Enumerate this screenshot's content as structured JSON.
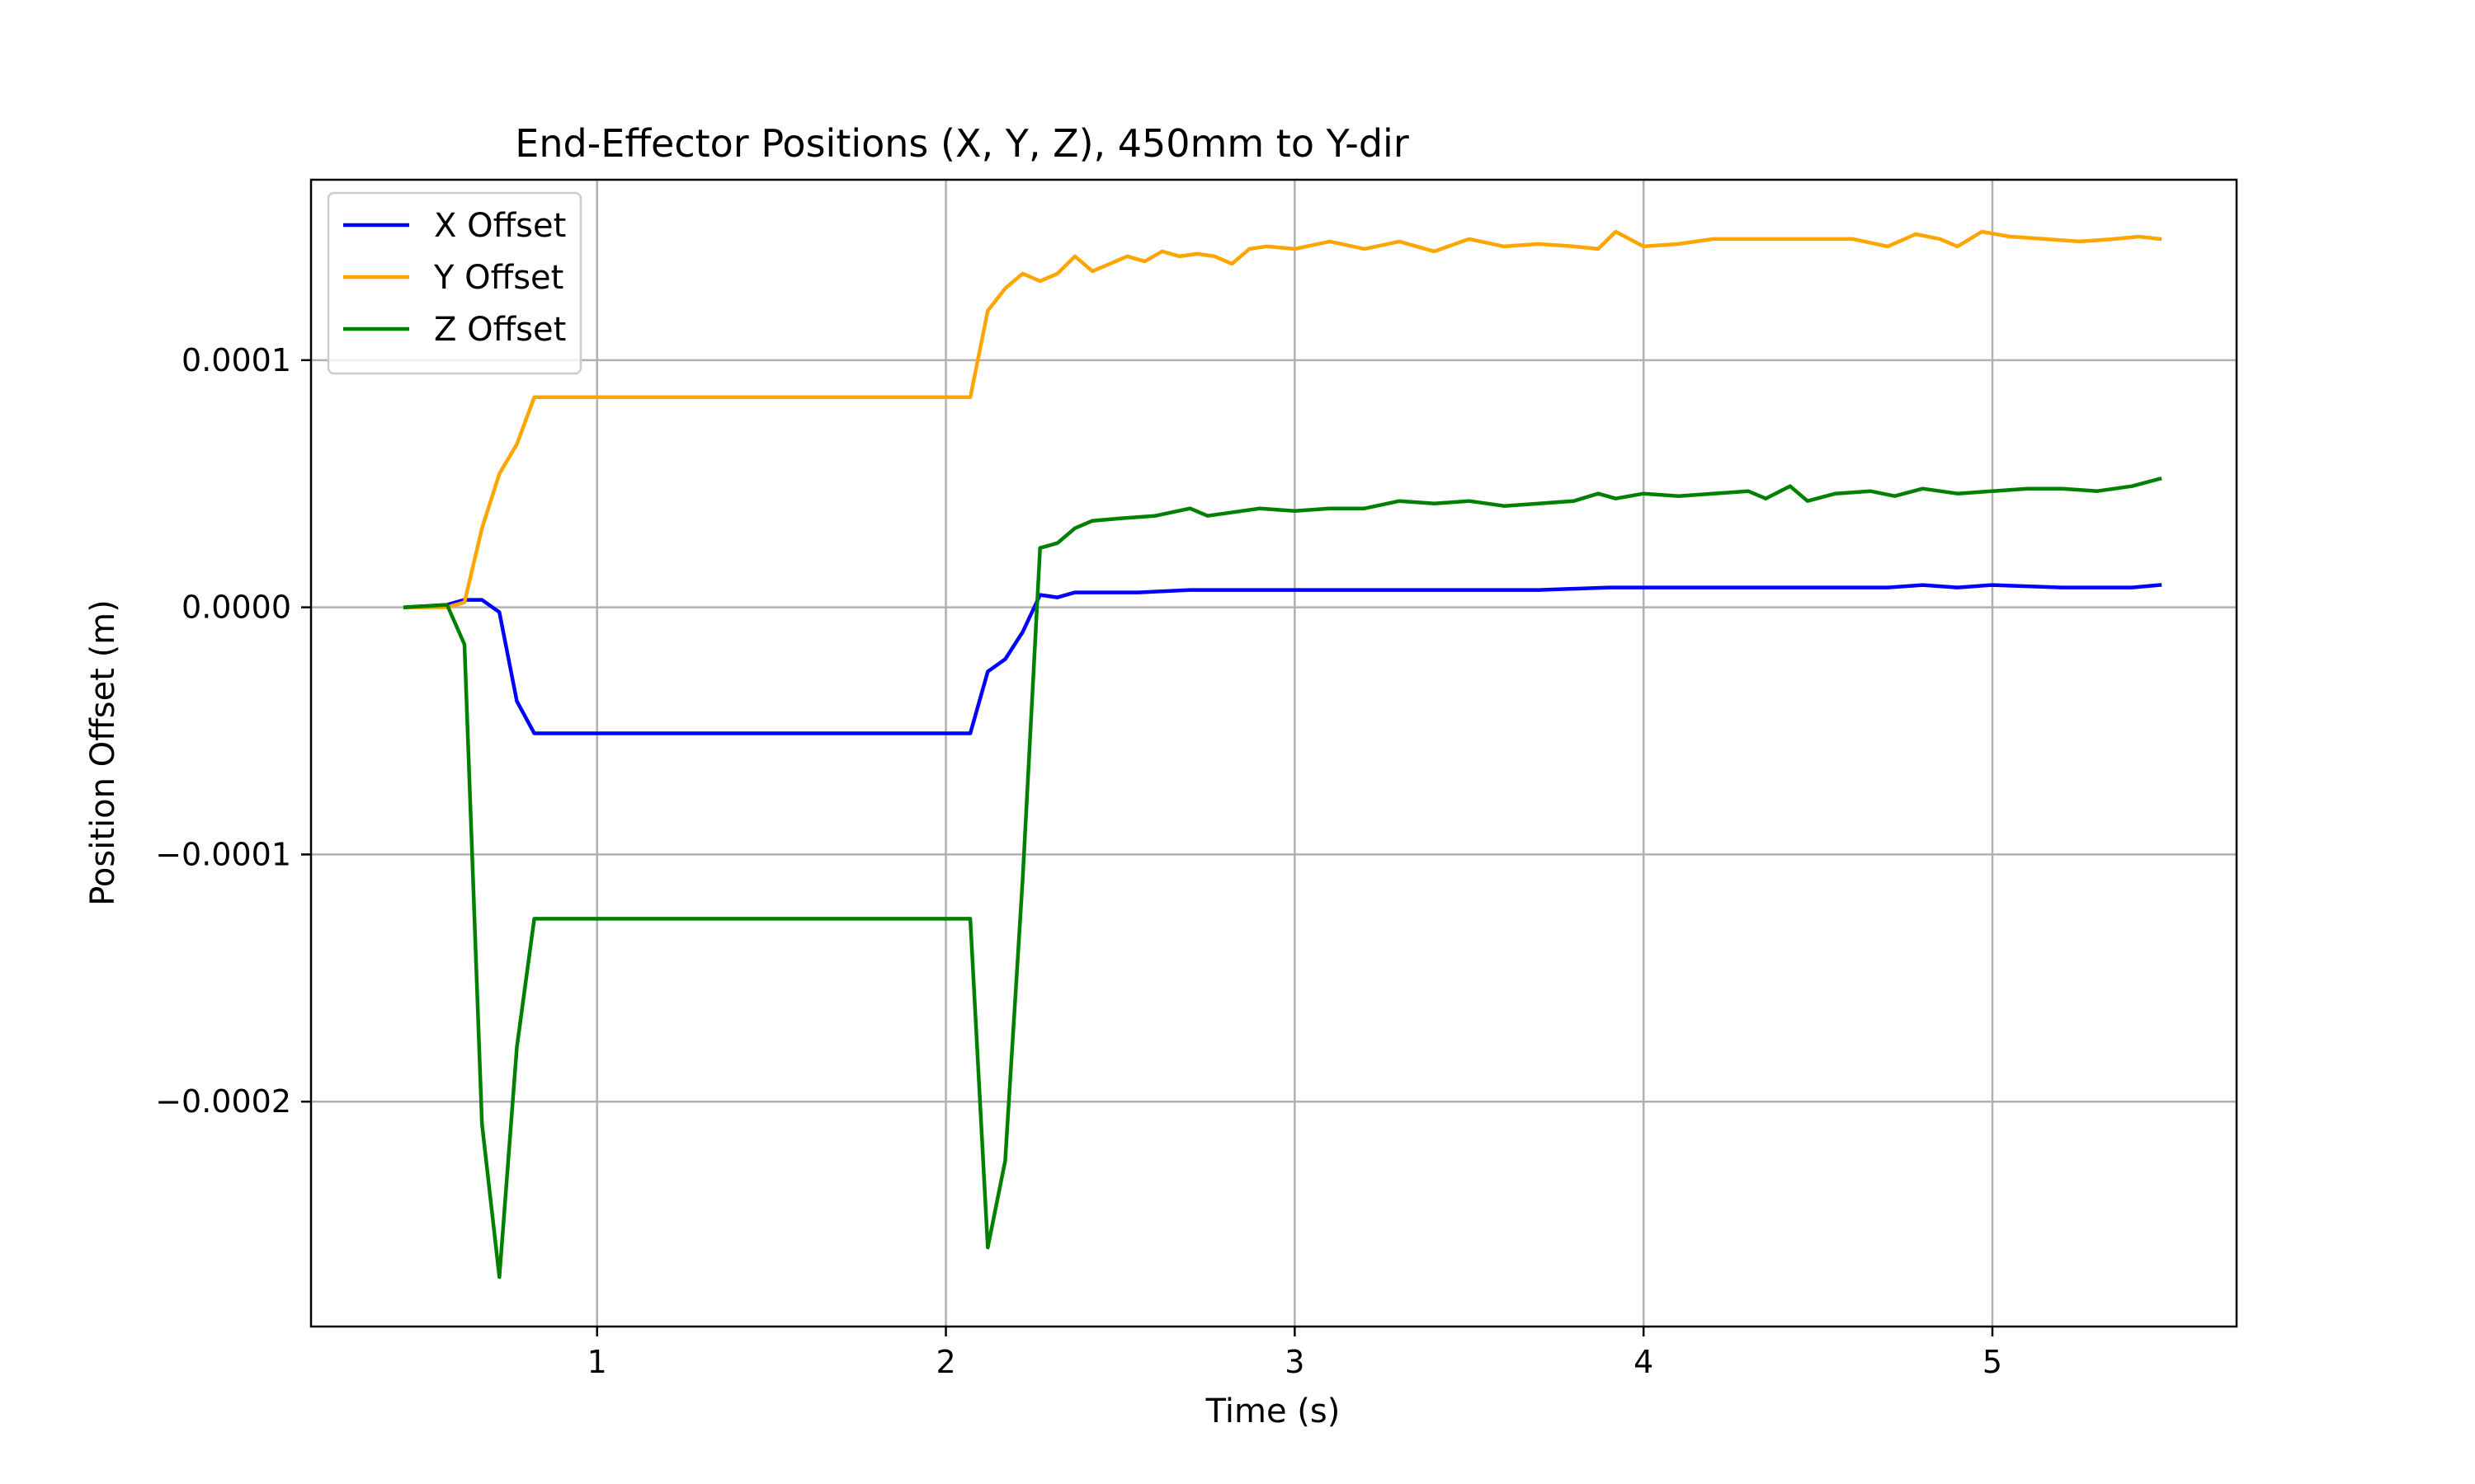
{
  "chart_data": {
    "type": "line",
    "title": "End-Effector Positions (X, Y, Z), 450mm to Y-dir",
    "xlabel": "Time (s)",
    "ylabel": "Position Offset (m)",
    "xlim": [
      0.18,
      5.7
    ],
    "ylim": [
      -0.000291,
      0.000173
    ],
    "xticks": [
      1,
      2,
      3,
      4,
      5
    ],
    "xtick_labels": [
      "1",
      "2",
      "3",
      "4",
      "5"
    ],
    "yticks": [
      0.0001,
      0.0,
      -0.0001,
      -0.0002
    ],
    "ytick_labels": [
      "0.0001",
      "0.0000",
      "−0.0001",
      "−0.0002"
    ],
    "grid": true,
    "legend_position": "upper-left",
    "series": [
      {
        "name": "X Offset",
        "color": "#0000ff",
        "points": [
          [
            0.45,
            0.0
          ],
          [
            0.57,
            1e-06
          ],
          [
            0.62,
            3e-06
          ],
          [
            0.67,
            3e-06
          ],
          [
            0.72,
            -2e-06
          ],
          [
            0.77,
            -3.8e-05
          ],
          [
            0.82,
            -5.1e-05
          ],
          [
            1.0,
            -5.1e-05
          ],
          [
            1.5,
            -5.1e-05
          ],
          [
            2.07,
            -5.1e-05
          ],
          [
            2.12,
            -2.6e-05
          ],
          [
            2.17,
            -2.1e-05
          ],
          [
            2.22,
            -1e-05
          ],
          [
            2.27,
            5e-06
          ],
          [
            2.32,
            4e-06
          ],
          [
            2.37,
            6e-06
          ],
          [
            2.45,
            6e-06
          ],
          [
            2.55,
            6e-06
          ],
          [
            2.7,
            7e-06
          ],
          [
            2.9,
            7e-06
          ],
          [
            3.1,
            7e-06
          ],
          [
            3.3,
            7e-06
          ],
          [
            3.5,
            7e-06
          ],
          [
            3.7,
            7e-06
          ],
          [
            3.9,
            8e-06
          ],
          [
            4.1,
            8e-06
          ],
          [
            4.3,
            8e-06
          ],
          [
            4.5,
            8e-06
          ],
          [
            4.7,
            8e-06
          ],
          [
            4.8,
            9e-06
          ],
          [
            4.9,
            8e-06
          ],
          [
            5.0,
            9e-06
          ],
          [
            5.2,
            8e-06
          ],
          [
            5.4,
            8e-06
          ],
          [
            5.48,
            9e-06
          ]
        ]
      },
      {
        "name": "Y Offset",
        "color": "#ffa500",
        "points": [
          [
            0.45,
            0.0
          ],
          [
            0.57,
            0.0
          ],
          [
            0.62,
            2e-06
          ],
          [
            0.67,
            3.2e-05
          ],
          [
            0.72,
            5.4e-05
          ],
          [
            0.77,
            6.6e-05
          ],
          [
            0.82,
            8.5e-05
          ],
          [
            1.0,
            8.5e-05
          ],
          [
            1.5,
            8.5e-05
          ],
          [
            2.07,
            8.5e-05
          ],
          [
            2.12,
            0.00012
          ],
          [
            2.17,
            0.000129
          ],
          [
            2.22,
            0.000135
          ],
          [
            2.27,
            0.000132
          ],
          [
            2.32,
            0.000135
          ],
          [
            2.37,
            0.000142
          ],
          [
            2.42,
            0.000136
          ],
          [
            2.47,
            0.000139
          ],
          [
            2.52,
            0.000142
          ],
          [
            2.57,
            0.00014
          ],
          [
            2.62,
            0.000144
          ],
          [
            2.67,
            0.000142
          ],
          [
            2.72,
            0.000143
          ],
          [
            2.77,
            0.000142
          ],
          [
            2.82,
            0.000139
          ],
          [
            2.87,
            0.000145
          ],
          [
            2.92,
            0.000146
          ],
          [
            3.0,
            0.000145
          ],
          [
            3.1,
            0.000148
          ],
          [
            3.2,
            0.000145
          ],
          [
            3.3,
            0.000148
          ],
          [
            3.4,
            0.000144
          ],
          [
            3.5,
            0.000149
          ],
          [
            3.6,
            0.000146
          ],
          [
            3.7,
            0.000147
          ],
          [
            3.8,
            0.000146
          ],
          [
            3.87,
            0.000145
          ],
          [
            3.92,
            0.000152
          ],
          [
            4.0,
            0.000146
          ],
          [
            4.1,
            0.000147
          ],
          [
            4.2,
            0.000149
          ],
          [
            4.3,
            0.000149
          ],
          [
            4.4,
            0.000149
          ],
          [
            4.5,
            0.000149
          ],
          [
            4.6,
            0.000149
          ],
          [
            4.7,
            0.000146
          ],
          [
            4.78,
            0.000151
          ],
          [
            4.85,
            0.000149
          ],
          [
            4.9,
            0.000146
          ],
          [
            4.97,
            0.000152
          ],
          [
            5.05,
            0.00015
          ],
          [
            5.15,
            0.000149
          ],
          [
            5.25,
            0.000148
          ],
          [
            5.35,
            0.000149
          ],
          [
            5.42,
            0.00015
          ],
          [
            5.48,
            0.000149
          ]
        ]
      },
      {
        "name": "Z Offset",
        "color": "#008000",
        "points": [
          [
            0.45,
            0.0
          ],
          [
            0.57,
            1e-06
          ],
          [
            0.62,
            -1.5e-05
          ],
          [
            0.67,
            -0.000209
          ],
          [
            0.72,
            -0.000271
          ],
          [
            0.77,
            -0.000178
          ],
          [
            0.82,
            -0.000126
          ],
          [
            1.0,
            -0.000126
          ],
          [
            1.5,
            -0.000126
          ],
          [
            2.07,
            -0.000126
          ],
          [
            2.12,
            -0.000259
          ],
          [
            2.17,
            -0.000224
          ],
          [
            2.22,
            -0.00011
          ],
          [
            2.27,
            2.4e-05
          ],
          [
            2.32,
            2.6e-05
          ],
          [
            2.37,
            3.2e-05
          ],
          [
            2.42,
            3.5e-05
          ],
          [
            2.5,
            3.6e-05
          ],
          [
            2.6,
            3.7e-05
          ],
          [
            2.7,
            4e-05
          ],
          [
            2.75,
            3.7e-05
          ],
          [
            2.8,
            3.8e-05
          ],
          [
            2.9,
            4e-05
          ],
          [
            3.0,
            3.9e-05
          ],
          [
            3.1,
            4e-05
          ],
          [
            3.2,
            4e-05
          ],
          [
            3.3,
            4.3e-05
          ],
          [
            3.4,
            4.2e-05
          ],
          [
            3.5,
            4.3e-05
          ],
          [
            3.6,
            4.1e-05
          ],
          [
            3.7,
            4.2e-05
          ],
          [
            3.8,
            4.3e-05
          ],
          [
            3.87,
            4.6e-05
          ],
          [
            3.92,
            4.4e-05
          ],
          [
            4.0,
            4.6e-05
          ],
          [
            4.1,
            4.5e-05
          ],
          [
            4.2,
            4.6e-05
          ],
          [
            4.3,
            4.7e-05
          ],
          [
            4.35,
            4.4e-05
          ],
          [
            4.42,
            4.9e-05
          ],
          [
            4.47,
            4.3e-05
          ],
          [
            4.55,
            4.6e-05
          ],
          [
            4.65,
            4.7e-05
          ],
          [
            4.72,
            4.5e-05
          ],
          [
            4.8,
            4.8e-05
          ],
          [
            4.9,
            4.6e-05
          ],
          [
            5.0,
            4.7e-05
          ],
          [
            5.1,
            4.8e-05
          ],
          [
            5.2,
            4.8e-05
          ],
          [
            5.3,
            4.7e-05
          ],
          [
            5.4,
            4.9e-05
          ],
          [
            5.48,
            5.2e-05
          ]
        ]
      }
    ]
  }
}
